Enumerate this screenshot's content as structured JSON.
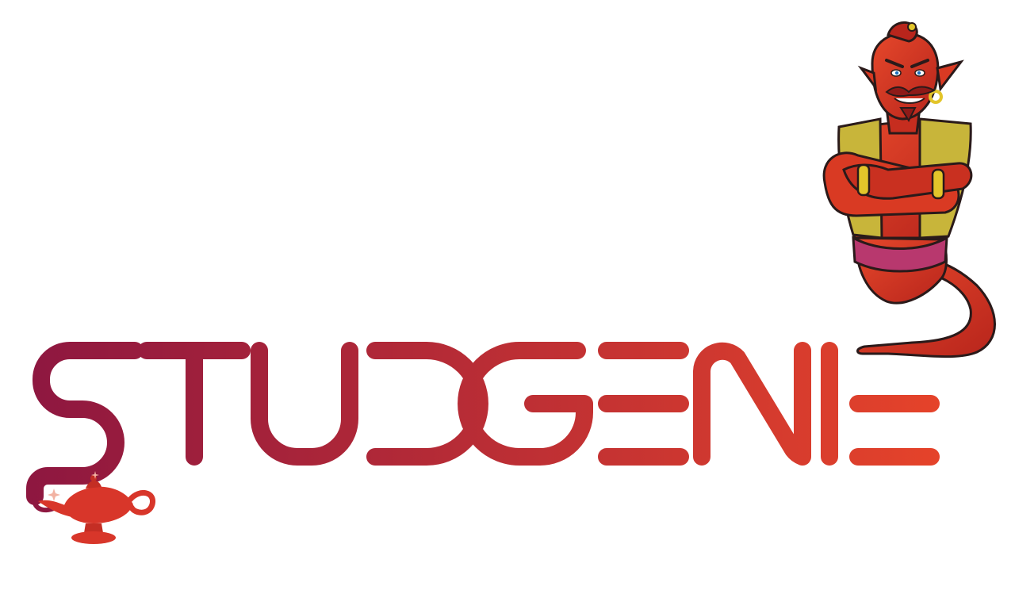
{
  "logo": {
    "wordmark": "STUDGENIE",
    "colors": {
      "gradient_start": "#8e1740",
      "gradient_end": "#e5432a",
      "genie_skin": "#d93a23",
      "genie_skin_shadow": "#a8201a",
      "vest": "#c8b53a",
      "bands": "#e3c52a",
      "sash": "#b8386e",
      "outline": "#2a1a1a",
      "lamp": "#d8362a"
    },
    "icons": [
      "genie-icon",
      "magic-lamp-icon"
    ]
  }
}
